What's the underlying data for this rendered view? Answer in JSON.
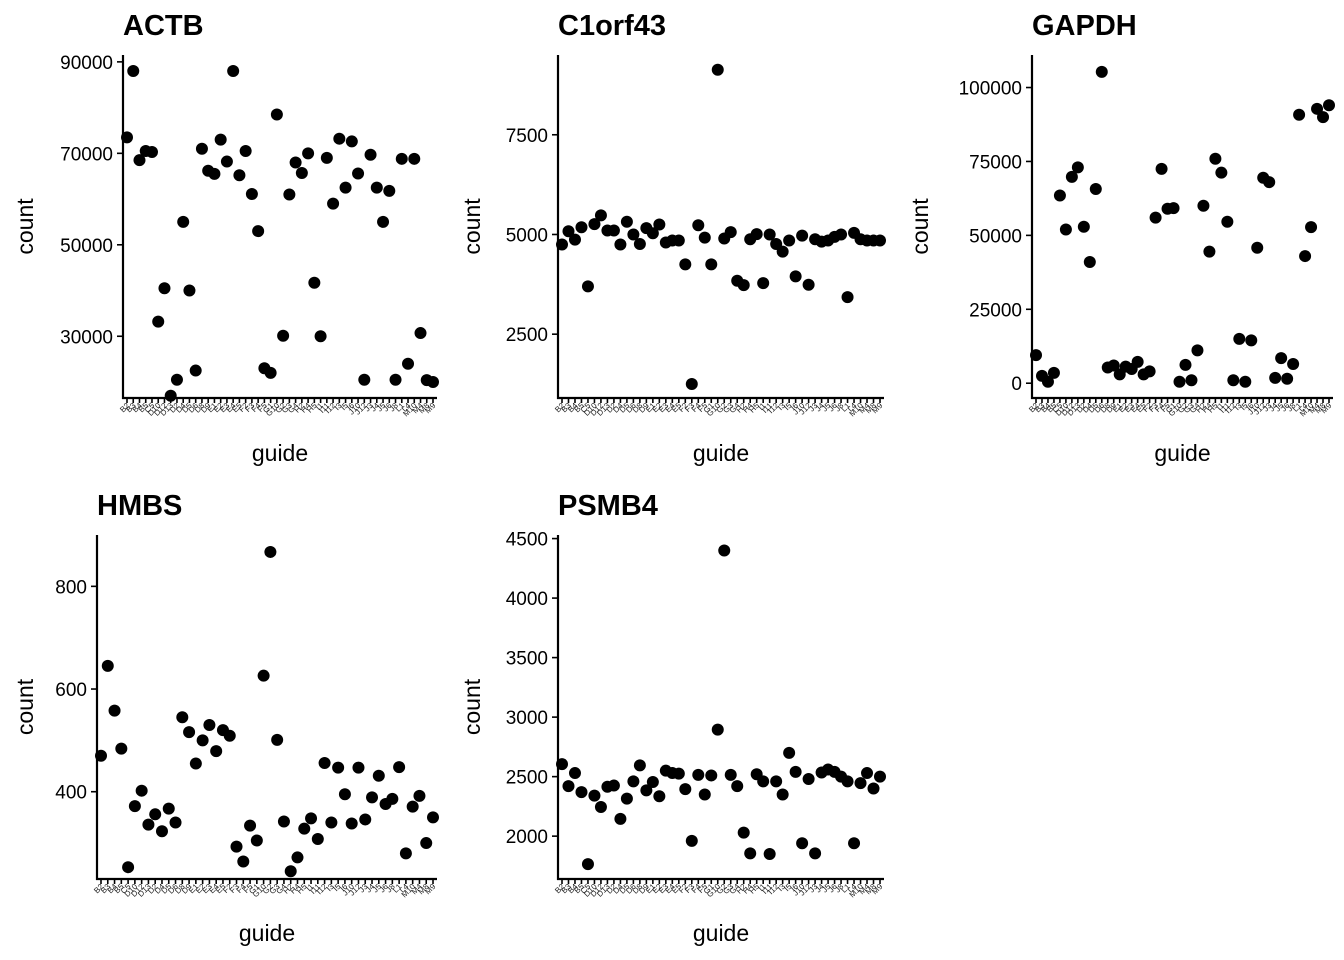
{
  "chart_data": [
    {
      "type": "scatter",
      "title": "ACTB",
      "xlabel": "guide",
      "ylabel": "count",
      "ylim": [
        16500,
        91500
      ],
      "yticks": [
        30000,
        50000,
        70000,
        90000
      ],
      "ytick_labels": [
        "30000",
        "50000",
        "70000",
        "90000"
      ],
      "x": [
        1,
        2,
        3,
        4,
        5,
        6,
        7,
        8,
        9,
        10,
        11,
        12,
        13,
        14,
        15,
        16,
        17,
        18,
        19,
        20,
        21,
        22,
        23,
        24,
        25,
        26,
        27,
        28,
        29,
        30,
        31,
        32,
        33,
        34,
        35,
        36,
        37,
        38,
        39,
        40,
        41,
        42,
        43,
        44,
        45,
        46,
        47,
        48,
        49,
        50
      ],
      "values": [
        73500,
        88000,
        68500,
        70500,
        70300,
        33200,
        40500,
        17000,
        20500,
        55000,
        40000,
        22500,
        71000,
        66200,
        65500,
        73000,
        68200,
        88000,
        65200,
        70500,
        61100,
        53000,
        23000,
        22000,
        78500,
        30100,
        61000,
        68000,
        65700,
        70000,
        41700,
        30000,
        69000,
        59000,
        73200,
        62500,
        72600,
        65600,
        20500,
        69700,
        62500,
        55000,
        61800,
        20500,
        68800,
        24000,
        68800,
        30700,
        20400,
        20000
      ],
      "x_tick_labels": [
        "B2",
        "B3",
        "B4",
        "B5",
        "C5",
        "D10",
        "D12",
        "D13",
        "D2",
        "D4",
        "D5",
        "D6",
        "D8",
        "D9",
        "E1",
        "E2",
        "E3",
        "E4",
        "E5",
        "F2",
        "F3",
        "F4",
        "F5",
        "G1",
        "G10",
        "G2",
        "G3",
        "G4",
        "H2",
        "H4",
        "H5",
        "I1",
        "I11",
        "I12",
        "I3",
        "I5",
        "I6",
        "J10",
        "J12",
        "J3",
        "J4",
        "J5",
        "J6",
        "J8",
        "L1",
        "L4",
        "M10",
        "M4",
        "M8",
        "M9"
      ]
    },
    {
      "type": "scatter",
      "title": "C1orf43",
      "xlabel": "guide",
      "ylabel": "count",
      "ylim": [
        900,
        9500
      ],
      "yticks": [
        2500,
        5000,
        7500
      ],
      "ytick_labels": [
        "2500",
        "5000",
        "7500"
      ],
      "x": [
        1,
        2,
        3,
        4,
        5,
        6,
        7,
        8,
        9,
        10,
        11,
        12,
        13,
        14,
        15,
        16,
        17,
        18,
        19,
        20,
        21,
        22,
        23,
        24,
        25,
        26,
        27,
        28,
        29,
        30,
        31,
        32,
        33,
        34,
        35,
        36,
        37,
        38,
        39,
        40,
        41,
        42,
        43,
        44,
        45,
        46,
        47,
        48,
        49,
        50
      ],
      "values": [
        4750,
        5080,
        4870,
        5180,
        3700,
        5260,
        5480,
        5100,
        5100,
        4750,
        5320,
        5000,
        4760,
        5160,
        5030,
        5250,
        4800,
        4850,
        4850,
        4250,
        1250,
        5230,
        4920,
        4250,
        9130,
        4900,
        5060,
        3840,
        3730,
        4880,
        5010,
        3780,
        5000,
        4760,
        4570,
        4850,
        3950,
        4970,
        3740,
        4880,
        4820,
        4850,
        4940,
        5000,
        3430,
        5040,
        4880,
        4850,
        4850,
        4850
      ],
      "x_tick_labels": [
        "B2",
        "B3",
        "B4",
        "B5",
        "C5",
        "D10",
        "D12",
        "D13",
        "D2",
        "D4",
        "D5",
        "D6",
        "D8",
        "D9",
        "E1",
        "E2",
        "E3",
        "E4",
        "E5",
        "F2",
        "F3",
        "F4",
        "F5",
        "G1",
        "G10",
        "G2",
        "G3",
        "G4",
        "H2",
        "H4",
        "H5",
        "I1",
        "I11",
        "I12",
        "I3",
        "I5",
        "I6",
        "J10",
        "J12",
        "J3",
        "J4",
        "J5",
        "J6",
        "J8",
        "L1",
        "L4",
        "M10",
        "M4",
        "M8",
        "M9"
      ]
    },
    {
      "type": "scatter",
      "title": "GAPDH",
      "xlabel": "guide",
      "ylabel": "count",
      "ylim": [
        -5000,
        111000
      ],
      "yticks": [
        0,
        25000,
        50000,
        75000,
        100000
      ],
      "ytick_labels": [
        "0",
        "25000",
        "50000",
        "75000",
        "100000"
      ],
      "x": [
        1,
        2,
        3,
        4,
        5,
        6,
        7,
        8,
        9,
        10,
        11,
        12,
        13,
        14,
        15,
        16,
        17,
        18,
        19,
        20,
        21,
        22,
        23,
        24,
        25,
        26,
        27,
        28,
        29,
        30,
        31,
        32,
        33,
        34,
        35,
        36,
        37,
        38,
        39,
        40,
        41,
        42,
        43,
        44,
        45,
        46,
        47,
        48,
        49,
        50
      ],
      "values": [
        9500,
        2500,
        500,
        3500,
        63500,
        52000,
        69800,
        73000,
        52900,
        41000,
        65700,
        105300,
        5300,
        6000,
        3000,
        5600,
        4800,
        7200,
        3000,
        4000,
        56000,
        72500,
        59000,
        59200,
        500,
        6200,
        1000,
        11100,
        60000,
        44500,
        75900,
        71200,
        54600,
        1000,
        15000,
        500,
        14500,
        45800,
        69500,
        68000,
        1800,
        8500,
        1500,
        6500,
        90800,
        43000,
        52800,
        92800,
        90000,
        94000
      ],
      "x_tick_labels": [
        "B2",
        "B3",
        "B4",
        "B5",
        "C5",
        "D10",
        "D12",
        "D13",
        "D2",
        "D4",
        "D5",
        "D6",
        "D8",
        "D9",
        "E1",
        "E2",
        "E3",
        "E4",
        "E5",
        "F2",
        "F3",
        "F4",
        "F5",
        "G1",
        "G10",
        "G2",
        "G3",
        "G4",
        "H2",
        "H4",
        "H5",
        "I1",
        "I11",
        "I12",
        "I3",
        "I5",
        "I6",
        "J10",
        "J12",
        "J3",
        "J4",
        "J5",
        "J6",
        "J8",
        "L1",
        "L4",
        "M10",
        "M4",
        "M8",
        "M9"
      ]
    },
    {
      "type": "scatter",
      "title": "HMBS",
      "xlabel": "guide",
      "ylabel": "count",
      "ylim": [
        230,
        900
      ],
      "yticks": [
        400,
        600,
        800
      ],
      "ytick_labels": [
        "400",
        "600",
        "800"
      ],
      "x": [
        1,
        2,
        3,
        4,
        5,
        6,
        7,
        8,
        9,
        10,
        11,
        12,
        13,
        14,
        15,
        16,
        17,
        18,
        19,
        20,
        21,
        22,
        23,
        24,
        25,
        26,
        27,
        28,
        29,
        30,
        31,
        32,
        33,
        34,
        35,
        36,
        37,
        38,
        39,
        40,
        41,
        42,
        43,
        44,
        45,
        46,
        47,
        48,
        49,
        50
      ],
      "values": [
        470,
        645,
        558,
        484,
        253,
        372,
        402,
        336,
        356,
        323,
        367,
        340,
        545,
        516,
        455,
        500,
        530,
        479,
        520,
        509,
        293,
        264,
        334,
        305,
        626,
        867,
        501,
        342,
        245,
        272,
        328,
        348,
        308,
        456,
        340,
        447,
        395,
        338,
        447,
        346,
        389,
        431,
        376,
        386,
        448,
        280,
        371,
        392,
        300,
        350
      ],
      "x_tick_labels": [
        "B2",
        "B3",
        "B4",
        "B5",
        "C5",
        "D10",
        "D12",
        "D13",
        "D2",
        "D4",
        "D5",
        "D6",
        "D8",
        "D9",
        "E1",
        "E2",
        "E3",
        "E4",
        "E5",
        "F2",
        "F3",
        "F4",
        "F5",
        "G1",
        "G10",
        "G2",
        "G3",
        "G4",
        "H2",
        "H4",
        "H5",
        "I1",
        "I11",
        "I12",
        "I3",
        "I5",
        "I6",
        "J10",
        "J12",
        "J3",
        "J4",
        "J5",
        "J6",
        "J8",
        "L1",
        "L4",
        "M10",
        "M4",
        "M8",
        "M9"
      ]
    },
    {
      "type": "scatter",
      "title": "PSMB4",
      "xlabel": "guide",
      "ylabel": "count",
      "ylim": [
        1640,
        4530
      ],
      "yticks": [
        2000,
        2500,
        3000,
        3500,
        4000,
        4500
      ],
      "ytick_labels": [
        "2000",
        "2500",
        "3000",
        "3500",
        "4000",
        "4500"
      ],
      "x": [
        1,
        2,
        3,
        4,
        5,
        6,
        7,
        8,
        9,
        10,
        11,
        12,
        13,
        14,
        15,
        16,
        17,
        18,
        19,
        20,
        21,
        22,
        23,
        24,
        25,
        26,
        27,
        28,
        29,
        30,
        31,
        32,
        33,
        34,
        35,
        36,
        37,
        38,
        39,
        40,
        41,
        42,
        43,
        44,
        45,
        46,
        47,
        48,
        49,
        50
      ],
      "values": [
        2605,
        2420,
        2530,
        2370,
        1765,
        2340,
        2245,
        2415,
        2425,
        2145,
        2315,
        2460,
        2595,
        2385,
        2455,
        2335,
        2550,
        2530,
        2525,
        2395,
        1960,
        2515,
        2350,
        2510,
        2895,
        4400,
        2515,
        2420,
        2030,
        1855,
        2520,
        2460,
        1850,
        2460,
        2350,
        2700,
        2540,
        1940,
        2480,
        1855,
        2535,
        2560,
        2540,
        2500,
        2460,
        1940,
        2445,
        2530,
        2400,
        2500
      ],
      "x_tick_labels": [
        "B2",
        "B3",
        "B4",
        "B5",
        "C5",
        "D10",
        "D12",
        "D13",
        "D2",
        "D4",
        "D5",
        "D6",
        "D8",
        "D9",
        "E1",
        "E2",
        "E3",
        "E4",
        "E5",
        "F2",
        "F3",
        "F4",
        "F5",
        "G1",
        "G10",
        "G2",
        "G3",
        "G4",
        "H2",
        "H4",
        "H5",
        "I1",
        "I11",
        "I12",
        "I3",
        "I5",
        "I6",
        "J10",
        "J12",
        "J3",
        "J4",
        "J5",
        "J6",
        "J8",
        "L1",
        "L4",
        "M10",
        "M4",
        "M8",
        "M9"
      ]
    }
  ],
  "colors": {
    "point": "#000000",
    "axis": "#000000",
    "background": "#ffffff"
  }
}
